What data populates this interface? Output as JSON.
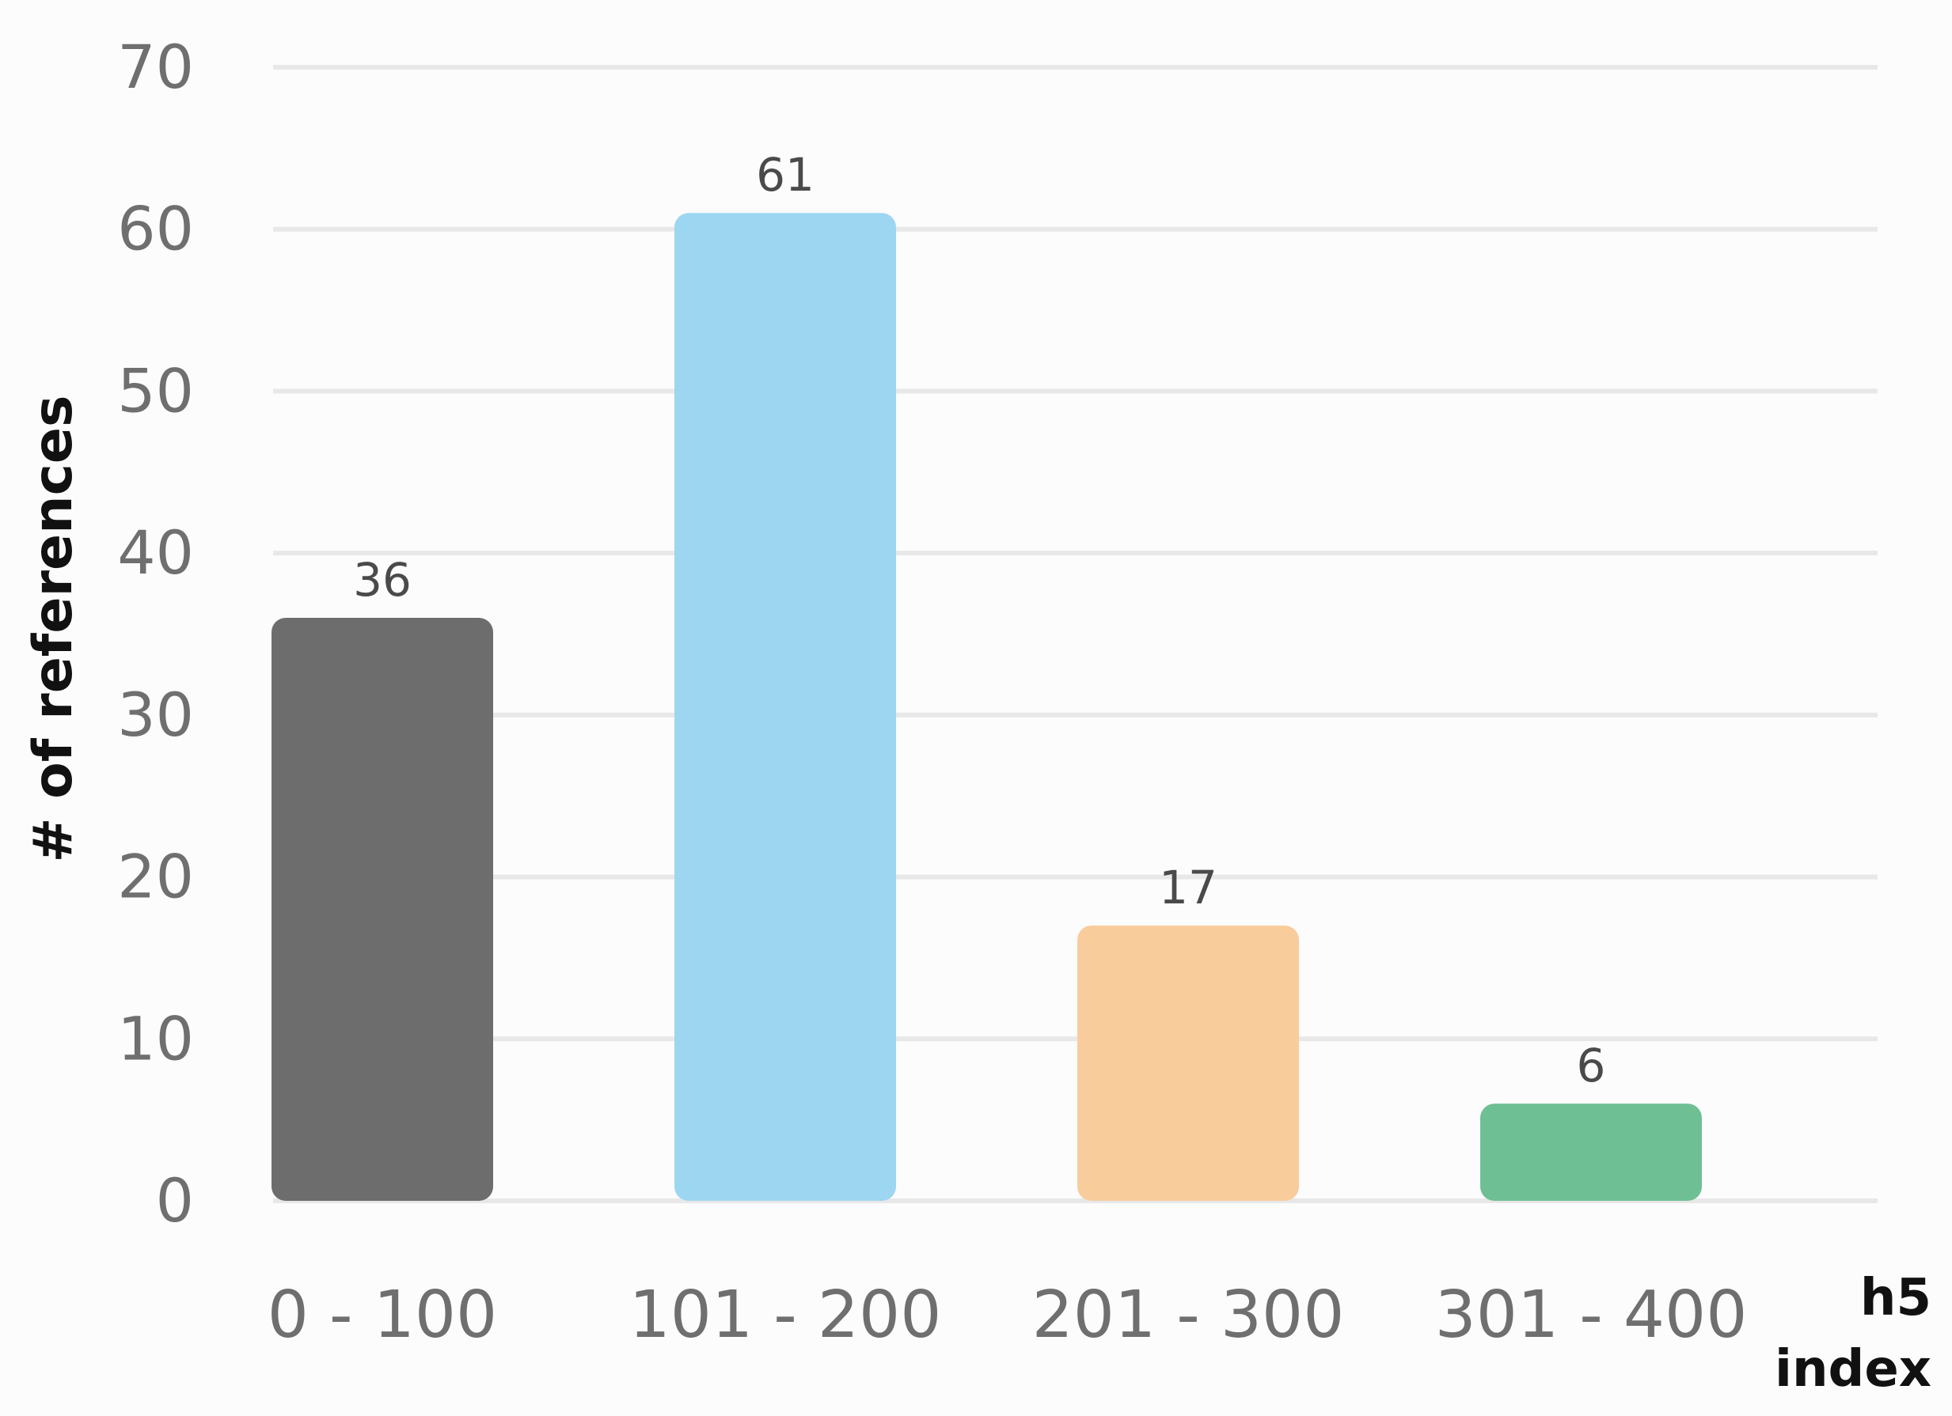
{
  "chart_data": {
    "type": "bar",
    "categories": [
      "0 - 100",
      "101 - 200",
      "201 - 300",
      "301 - 400"
    ],
    "values": [
      36,
      61,
      17,
      6
    ],
    "data_labels": [
      "36",
      "61",
      "17",
      "6"
    ],
    "colors": [
      "#6d6d6d",
      "#9dd6f1",
      "#f9cc9c",
      "#6fbf95"
    ],
    "title": "",
    "xlabel": "h5 index",
    "xlabel_lines": [
      "h5",
      "index"
    ],
    "ylabel": "# of references",
    "ylim": [
      0,
      70
    ],
    "yticks": [
      0,
      10,
      20,
      30,
      40,
      50,
      60,
      70
    ],
    "ytick_labels": [
      "0",
      "10",
      "20",
      "30",
      "40",
      "50",
      "60",
      "70"
    ],
    "grid": true,
    "legend": "none"
  }
}
